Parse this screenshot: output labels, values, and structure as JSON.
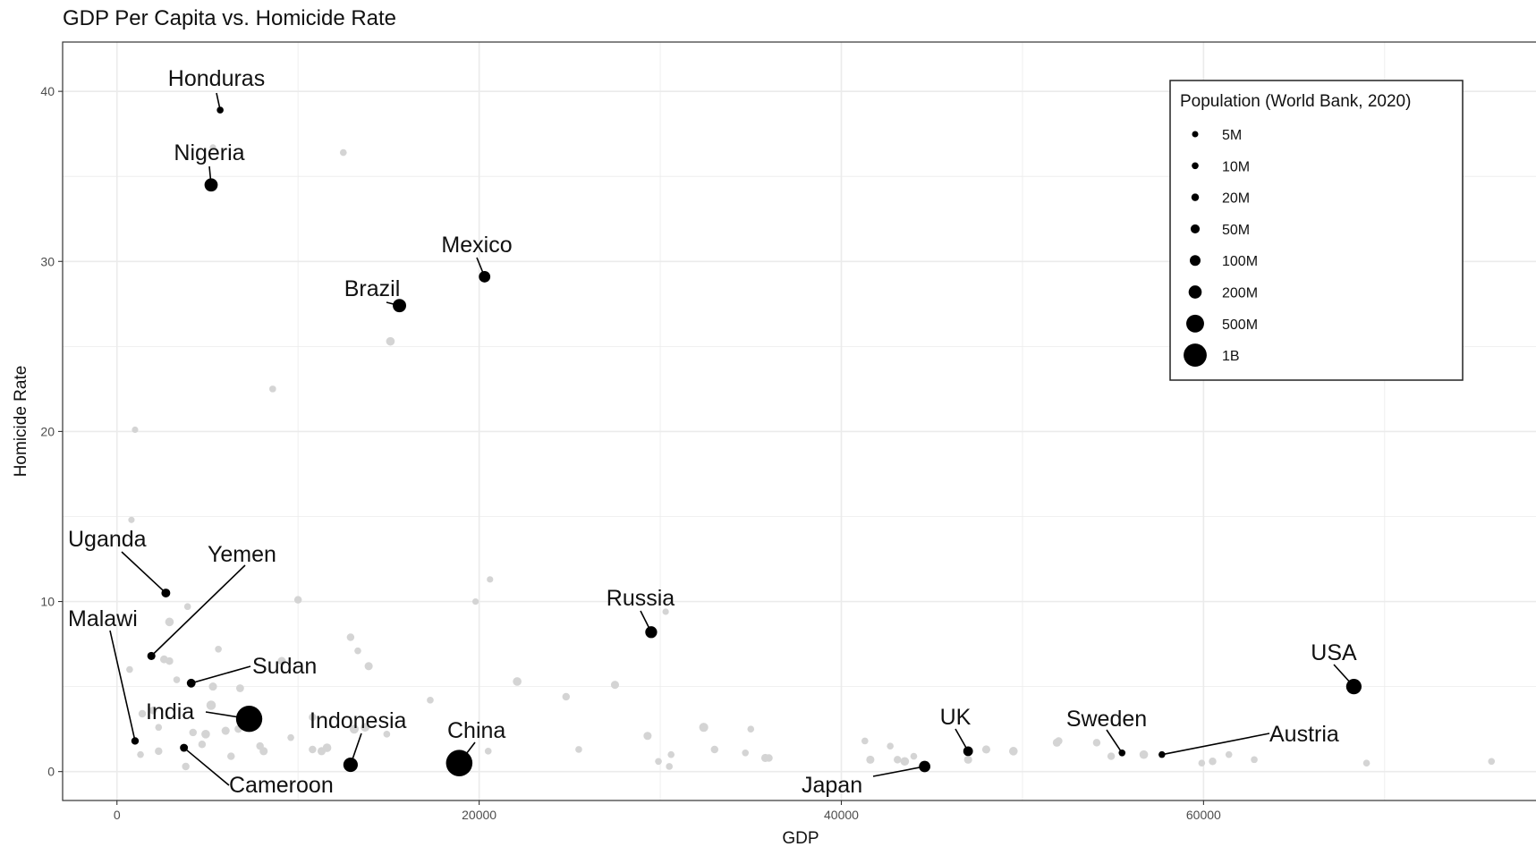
{
  "chart_data": {
    "type": "scatter",
    "title": "GDP Per Capita vs. Homicide Rate",
    "xlabel": "GDP",
    "ylabel": "Homicide Rate",
    "xlim": [
      -3000,
      79000
    ],
    "ylim": [
      -1.7,
      42.9
    ],
    "x_ticks": [
      0,
      20000,
      40000,
      60000
    ],
    "y_ticks": [
      0,
      10,
      20,
      30,
      40
    ],
    "grid": true,
    "legend": {
      "title": "Population (World Bank, 2020)",
      "placement": "top-right",
      "entries": [
        {
          "label": "5M",
          "value_m": 5
        },
        {
          "label": "10M",
          "value_m": 10
        },
        {
          "label": "20M",
          "value_m": 20
        },
        {
          "label": "50M",
          "value_m": 50
        },
        {
          "label": "100M",
          "value_m": 100
        },
        {
          "label": "200M",
          "value_m": 200
        },
        {
          "label": "500M",
          "value_m": 500
        },
        {
          "label": "1B",
          "value_m": 1000
        }
      ]
    },
    "colors": {
      "labeled": "#000000",
      "other": "#d4d4d4",
      "grid": "#ebebeb",
      "panel_border": "#333333"
    },
    "labeled_points": [
      {
        "name": "Honduras",
        "gdp": 5700,
        "rate": 38.9,
        "pop_m": 10
      },
      {
        "name": "Nigeria",
        "gdp": 5200,
        "rate": 34.5,
        "pop_m": 206
      },
      {
        "name": "Mexico",
        "gdp": 20300,
        "rate": 29.1,
        "pop_m": 129
      },
      {
        "name": "Brazil",
        "gdp": 15600,
        "rate": 27.4,
        "pop_m": 213
      },
      {
        "name": "Uganda",
        "gdp": 2700,
        "rate": 10.5,
        "pop_m": 46
      },
      {
        "name": "Yemen",
        "gdp": 1900,
        "rate": 6.8,
        "pop_m": 30
      },
      {
        "name": "Malawi",
        "gdp": 1000,
        "rate": 1.8,
        "pop_m": 19
      },
      {
        "name": "Sudan",
        "gdp": 4100,
        "rate": 5.2,
        "pop_m": 44
      },
      {
        "name": "India",
        "gdp": 7300,
        "rate": 3.1,
        "pop_m": 1380
      },
      {
        "name": "Cameroon",
        "gdp": 3700,
        "rate": 1.4,
        "pop_m": 27
      },
      {
        "name": "Indonesia",
        "gdp": 12900,
        "rate": 0.4,
        "pop_m": 274
      },
      {
        "name": "China",
        "gdp": 18900,
        "rate": 0.5,
        "pop_m": 1400
      },
      {
        "name": "Russia",
        "gdp": 29500,
        "rate": 8.2,
        "pop_m": 144
      },
      {
        "name": "UK",
        "gdp": 47000,
        "rate": 1.2,
        "pop_m": 67
      },
      {
        "name": "Japan",
        "gdp": 44600,
        "rate": 0.3,
        "pop_m": 126
      },
      {
        "name": "Sweden",
        "gdp": 55500,
        "rate": 1.1,
        "pop_m": 10
      },
      {
        "name": "Austria",
        "gdp": 57700,
        "rate": 1.0,
        "pop_m": 9
      },
      {
        "name": "USA",
        "gdp": 68300,
        "rate": 5.0,
        "pop_m": 330
      }
    ],
    "other_points": [
      [
        12500,
        36.4,
        10
      ],
      [
        5300,
        36.7,
        6
      ],
      [
        15100,
        25.3,
        40
      ],
      [
        8600,
        22.5,
        10
      ],
      [
        1000,
        20.1,
        6
      ],
      [
        800,
        14.8,
        6
      ],
      [
        10000,
        10.1,
        20
      ],
      [
        2900,
        8.8,
        40
      ],
      [
        3900,
        9.7,
        10
      ],
      [
        19800,
        10.0,
        6
      ],
      [
        20600,
        11.3,
        6
      ],
      [
        30300,
        9.4,
        6
      ],
      [
        12900,
        7.9,
        20
      ],
      [
        13300,
        7.1,
        10
      ],
      [
        13900,
        6.2,
        30
      ],
      [
        5600,
        7.2,
        10
      ],
      [
        9100,
        6.5,
        30
      ],
      [
        2600,
        6.6,
        25
      ],
      [
        2900,
        6.5,
        20
      ],
      [
        700,
        6.0,
        10
      ],
      [
        3300,
        5.4,
        10
      ],
      [
        5300,
        5.0,
        30
      ],
      [
        6800,
        4.9,
        25
      ],
      [
        22100,
        5.3,
        40
      ],
      [
        27500,
        5.1,
        30
      ],
      [
        24800,
        4.4,
        20
      ],
      [
        17300,
        4.2,
        10
      ],
      [
        2000,
        3.6,
        25
      ],
      [
        1400,
        3.4,
        20
      ],
      [
        5200,
        3.9,
        60
      ],
      [
        10800,
        3.2,
        20
      ],
      [
        2300,
        2.6,
        10
      ],
      [
        4200,
        2.3,
        20
      ],
      [
        4900,
        2.2,
        40
      ],
      [
        6000,
        2.4,
        30
      ],
      [
        6700,
        2.5,
        20
      ],
      [
        9600,
        2.0,
        10
      ],
      [
        13100,
        2.5,
        50
      ],
      [
        13700,
        2.6,
        40
      ],
      [
        14900,
        2.2,
        10
      ],
      [
        11600,
        1.4,
        40
      ],
      [
        11300,
        1.2,
        30
      ],
      [
        10800,
        1.3,
        20
      ],
      [
        8100,
        1.2,
        30
      ],
      [
        7900,
        1.5,
        20
      ],
      [
        6300,
        0.9,
        20
      ],
      [
        4700,
        1.6,
        20
      ],
      [
        3800,
        0.3,
        20
      ],
      [
        2300,
        1.2,
        20
      ],
      [
        1300,
        1.0,
        10
      ],
      [
        20500,
        1.2,
        10
      ],
      [
        25500,
        1.3,
        10
      ],
      [
        29300,
        2.1,
        30
      ],
      [
        29900,
        0.6,
        10
      ],
      [
        30500,
        0.3,
        10
      ],
      [
        30600,
        1.0,
        10
      ],
      [
        32400,
        2.6,
        50
      ],
      [
        33000,
        1.3,
        20
      ],
      [
        34700,
        1.1,
        10
      ],
      [
        35000,
        2.5,
        10
      ],
      [
        35800,
        0.8,
        30
      ],
      [
        36000,
        0.8,
        20
      ],
      [
        41300,
        1.8,
        10
      ],
      [
        41600,
        0.7,
        30
      ],
      [
        42700,
        1.5,
        10
      ],
      [
        43100,
        0.7,
        20
      ],
      [
        43500,
        0.6,
        40
      ],
      [
        44000,
        0.9,
        10
      ],
      [
        47000,
        0.7,
        30
      ],
      [
        48000,
        1.3,
        30
      ],
      [
        49500,
        1.2,
        40
      ],
      [
        51900,
        1.7,
        30
      ],
      [
        52000,
        1.8,
        20
      ],
      [
        54100,
        1.7,
        20
      ],
      [
        54900,
        0.9,
        20
      ],
      [
        56700,
        1.0,
        40
      ],
      [
        59900,
        0.5,
        10
      ],
      [
        60500,
        0.6,
        20
      ],
      [
        61400,
        1.0,
        10
      ],
      [
        62800,
        0.7,
        10
      ],
      [
        69000,
        0.5,
        10
      ],
      [
        75900,
        0.6,
        10
      ]
    ]
  }
}
